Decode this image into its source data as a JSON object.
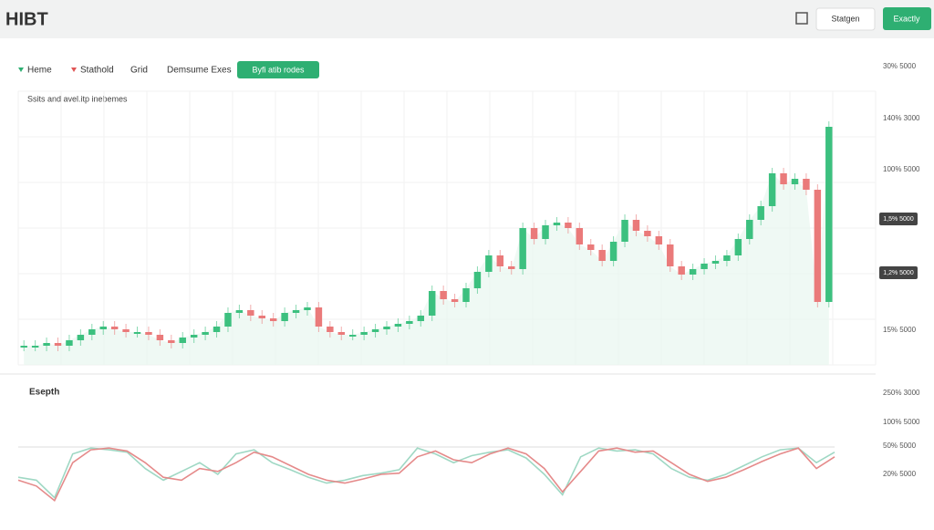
{
  "header": {
    "title": "HIBT",
    "buttons": [
      "Statgen",
      "Exactly"
    ]
  },
  "toolbar": {
    "items": [
      "Heme",
      "Stathold",
      "Grid",
      "Demsume Exes"
    ],
    "active": "Byfi atib rodes"
  },
  "chart": {
    "subtitle": "Ssits and avel.itp inebemes",
    "axis_labels": [
      "30% 5000",
      "140% 3000",
      "100% 5000",
      "15% 5000"
    ],
    "price_tags": [
      "1,5% 5000",
      "1,2% 5000"
    ],
    "ylim": [
      0,
      100
    ],
    "close": [
      7,
      7,
      8,
      7,
      9,
      11,
      13,
      14,
      13,
      12,
      12,
      11,
      9,
      8,
      10,
      11,
      12,
      14,
      19,
      20,
      18,
      17,
      16,
      19,
      20,
      21,
      14,
      12,
      11,
      11,
      12,
      13,
      14,
      15,
      16,
      18,
      27,
      24,
      23,
      28,
      34,
      40,
      36,
      35,
      50,
      46,
      51,
      52,
      50,
      44,
      42,
      38,
      45,
      53,
      49,
      47,
      44,
      36,
      33,
      35,
      37,
      38,
      40,
      46,
      53,
      58,
      70,
      66,
      68,
      64,
      23,
      87
    ]
  },
  "depth": {
    "title": "Esepth",
    "axis_labels": [
      "250% 3000",
      "100% 5000",
      "50% 5000",
      "20% 5000"
    ],
    "ylim": [
      0,
      100
    ],
    "series": [
      {
        "color": "#9fd8c4",
        "values": [
          45,
          40,
          10,
          85,
          95,
          92,
          88,
          60,
          40,
          55,
          70,
          50,
          85,
          92,
          70,
          58,
          45,
          35,
          40,
          48,
          52,
          58,
          95,
          85,
          70,
          82,
          88,
          92,
          78,
          50,
          15,
          80,
          95,
          90,
          92,
          85,
          60,
          45,
          40,
          50,
          65,
          80,
          92,
          95,
          70,
          88
        ]
      },
      {
        "color": "#e58a8a",
        "values": [
          40,
          30,
          5,
          70,
          92,
          95,
          90,
          70,
          45,
          40,
          60,
          55,
          70,
          88,
          80,
          65,
          50,
          40,
          35,
          42,
          50,
          52,
          80,
          90,
          75,
          70,
          85,
          95,
          85,
          60,
          20,
          55,
          90,
          95,
          88,
          90,
          70,
          50,
          38,
          45,
          58,
          72,
          85,
          95,
          60,
          80
        ]
      }
    ]
  }
}
